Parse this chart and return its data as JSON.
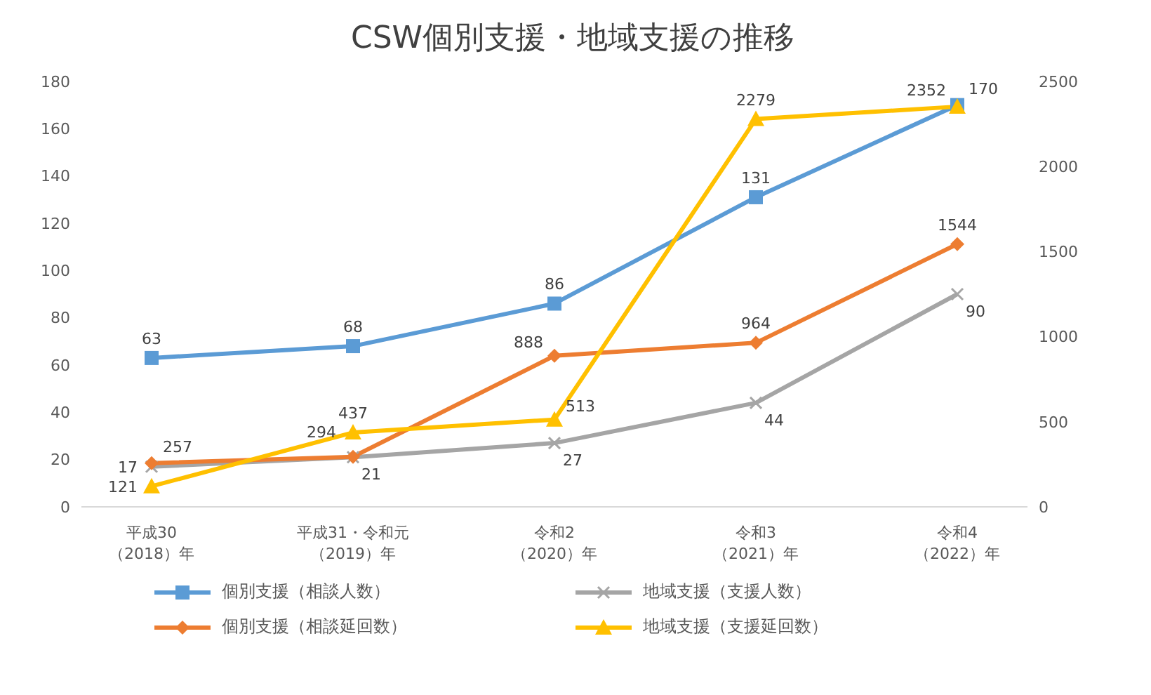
{
  "chart_data": {
    "type": "line",
    "title": "CSW個別支援・地域支援の推移",
    "categories": [
      "平成30（2018）年",
      "平成31・令和元（2019）年",
      "令和2（2020）年",
      "令和3（2021）年",
      "令和4（2022）年"
    ],
    "series": [
      {
        "name": "個別支援（相談人数）",
        "color": "#5b9bd5",
        "marker": "square",
        "values": [
          63,
          68,
          86,
          131,
          170
        ]
      },
      {
        "name": "地域支援（支援人数）",
        "color": "#a5a5a5",
        "marker": "cross",
        "values": [
          17,
          21,
          27,
          44,
          90
        ]
      },
      {
        "name": "個別支援（相談延回数）",
        "color": "#ed7d31",
        "marker": "diamond",
        "axis": "y2",
        "values": [
          257,
          294,
          888,
          964,
          1544
        ]
      },
      {
        "name": "地域支援（支援延回数）",
        "color": "#ffc000",
        "marker": "triangle",
        "axis": "y2",
        "values": [
          121,
          437,
          513,
          2279,
          2352
        ]
      }
    ],
    "ylim": [
      0,
      180
    ],
    "yticks": [
      0,
      20,
      40,
      60,
      80,
      100,
      120,
      140,
      160,
      180
    ],
    "y2lim": [
      0,
      2500
    ],
    "y2ticks": [
      0,
      500,
      1000,
      1500,
      2000,
      2500
    ],
    "grid": false,
    "legend": "bottom",
    "data_labels": true,
    "line_style": "solid"
  }
}
